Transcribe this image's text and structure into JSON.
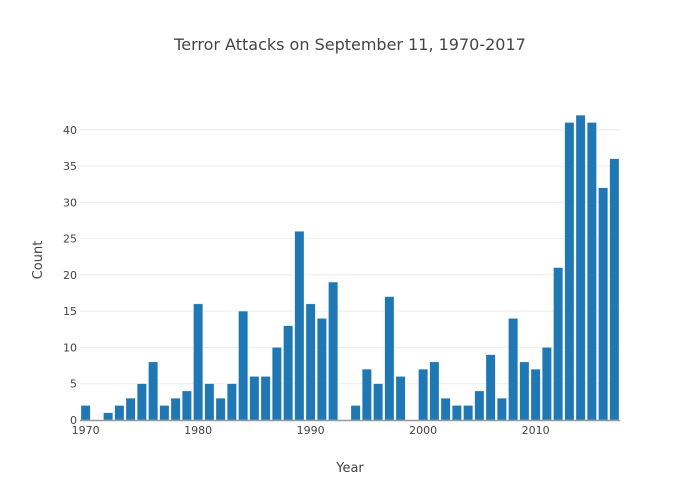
{
  "chart_data": {
    "type": "bar",
    "title": "Terror Attacks on September 11, 1970-2017",
    "xlabel": "Year",
    "ylabel": "Count",
    "x": [
      1970,
      1971,
      1972,
      1973,
      1974,
      1975,
      1976,
      1977,
      1978,
      1979,
      1980,
      1981,
      1982,
      1983,
      1984,
      1985,
      1986,
      1987,
      1988,
      1989,
      1990,
      1991,
      1992,
      1993,
      1994,
      1995,
      1996,
      1997,
      1998,
      1999,
      2000,
      2001,
      2002,
      2003,
      2004,
      2005,
      2006,
      2007,
      2008,
      2009,
      2010,
      2011,
      2012,
      2013,
      2014,
      2015,
      2016,
      2017
    ],
    "values": [
      2,
      0,
      1,
      2,
      3,
      5,
      8,
      2,
      3,
      4,
      16,
      5,
      3,
      5,
      15,
      6,
      6,
      10,
      13,
      26,
      16,
      14,
      19,
      0,
      2,
      7,
      5,
      17,
      6,
      0,
      7,
      8,
      3,
      2,
      2,
      4,
      9,
      3,
      14,
      8,
      7,
      10,
      21,
      41,
      42,
      41,
      32,
      36
    ],
    "xlim": [
      1969.5,
      2017.5
    ],
    "ylim": [
      0,
      44.1
    ],
    "xticks": [
      "1970",
      "1980",
      "1990",
      "2000",
      "2010"
    ],
    "yticks": [
      "0",
      "5",
      "10",
      "15",
      "20",
      "25",
      "30",
      "35",
      "40"
    ],
    "grid": true,
    "bar_color": "#1f77b4"
  }
}
